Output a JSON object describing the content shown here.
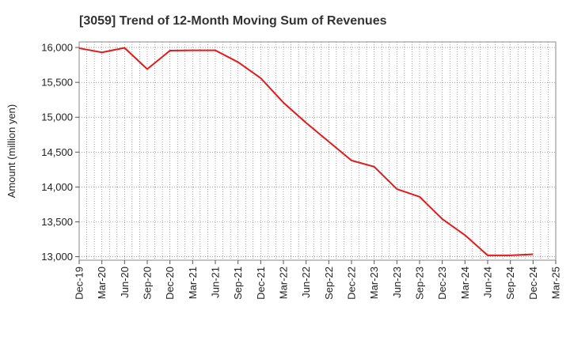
{
  "chart_data": {
    "type": "line",
    "title": "[3059]  Trend of 12-Month Moving Sum of Revenues",
    "xlabel": "",
    "ylabel": "Amount (million yen)",
    "ylim": [
      12950,
      16080
    ],
    "yticks": [
      13000,
      13500,
      14000,
      14500,
      15000,
      15500,
      16000
    ],
    "ytick_labels": [
      "13,000",
      "13,500",
      "14,000",
      "14,500",
      "15,000",
      "15,500",
      "16,000"
    ],
    "x_tick_labels": [
      "Dec-19",
      "Mar-20",
      "Jun-20",
      "Sep-20",
      "Dec-20",
      "Mar-21",
      "Jun-21",
      "Sep-21",
      "Dec-21",
      "Mar-22",
      "Jun-22",
      "Sep-22",
      "Dec-22",
      "Mar-23",
      "Jun-23",
      "Sep-23",
      "Dec-23",
      "Mar-24",
      "Jun-24",
      "Sep-24",
      "Dec-24",
      "Mar-25"
    ],
    "grid": true,
    "line_color": "#e31a1c",
    "series": [
      {
        "values": [
          15990,
          15930,
          15995,
          15690,
          15955,
          15960,
          15960,
          15790,
          15560,
          15210,
          14920,
          14650,
          14380,
          14290,
          13970,
          13860,
          13540,
          13310,
          13020,
          13020,
          13035
        ]
      }
    ]
  }
}
